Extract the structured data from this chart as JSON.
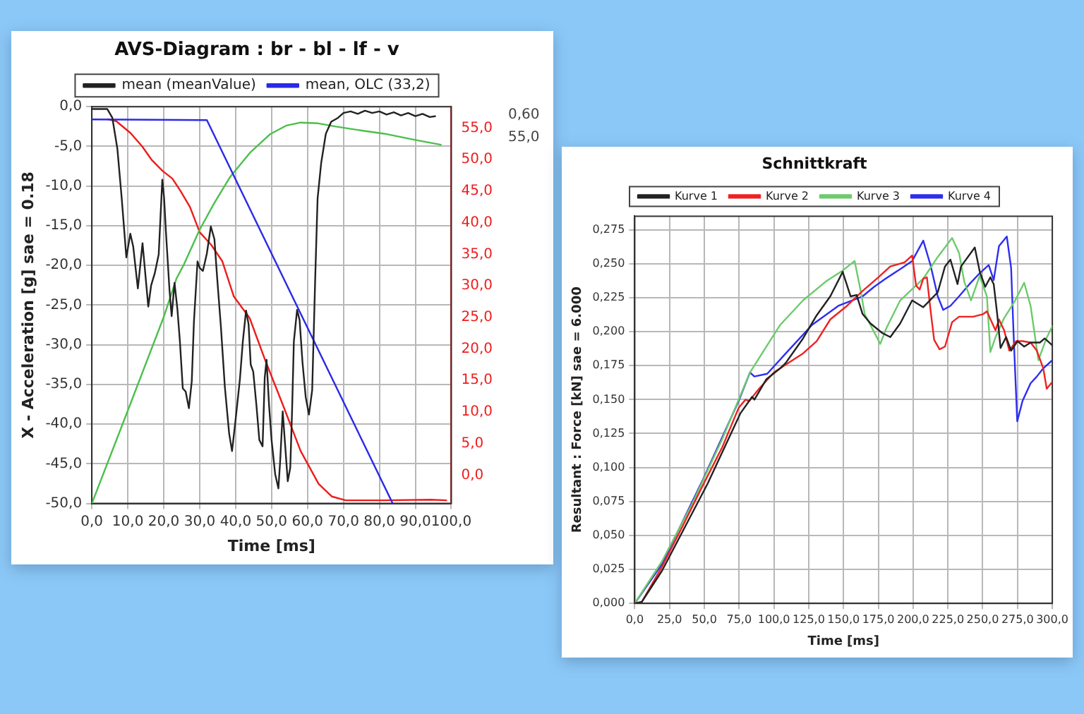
{
  "chart_data": [
    {
      "type": "line",
      "title": "AVS-Diagram : br - bl - lf - v",
      "xlabel": "Time [ms]",
      "ylabel": "X - Acceleration [g] sae = 0.18",
      "legend": "top",
      "grid": true,
      "marker": "none",
      "xlim": [
        0,
        100
      ],
      "xticks": [
        {
          "value": 0,
          "label": "0,0"
        },
        {
          "value": 10,
          "label": "10,0"
        },
        {
          "value": 20,
          "label": "20,0"
        },
        {
          "value": 30,
          "label": "30,0"
        },
        {
          "value": 40,
          "label": "40,0"
        },
        {
          "value": 50,
          "label": "50,0"
        },
        {
          "value": 60,
          "label": "60,0"
        },
        {
          "value": 70,
          "label": "70,0"
        },
        {
          "value": 80,
          "label": "80,0"
        },
        {
          "value": 90,
          "label": "90,0"
        },
        {
          "value": 100,
          "label": "100,0"
        }
      ],
      "ylim": [
        -50,
        0
      ],
      "yticks": [
        {
          "value": -50,
          "label": "-50,0"
        },
        {
          "value": -45,
          "label": "-45,0"
        },
        {
          "value": -40,
          "label": "-40,0"
        },
        {
          "value": -35,
          "label": "-35,0"
        },
        {
          "value": -30,
          "label": "-30,0"
        },
        {
          "value": -25,
          "label": "-25,0"
        },
        {
          "value": -20,
          "label": "-20,0"
        },
        {
          "value": -15,
          "label": "-15,0"
        },
        {
          "value": -10,
          "label": "-10,0"
        },
        {
          "value": -5,
          "label": "-5,0"
        },
        {
          "value": 0,
          "label": "0,0"
        }
      ],
      "y2lim": [
        -4.5,
        58.4
      ],
      "y2ticks": [
        {
          "value": 0,
          "label": "0,0"
        },
        {
          "value": 5,
          "label": "5,0"
        },
        {
          "value": 10,
          "label": "10,0"
        },
        {
          "value": 15,
          "label": "15,0"
        },
        {
          "value": 20,
          "label": "20,0"
        },
        {
          "value": 25,
          "label": "25,0"
        },
        {
          "value": 30,
          "label": "30,0"
        },
        {
          "value": 35,
          "label": "35,0"
        },
        {
          "value": 40,
          "label": "40,0"
        },
        {
          "value": 45,
          "label": "45,0"
        },
        {
          "value": 50,
          "label": "50,0"
        },
        {
          "value": 55,
          "label": "55,0"
        }
      ],
      "annotations": [
        "0,60",
        "55,0"
      ],
      "series": [
        {
          "name": "mean (meanValue)",
          "color": "#222222",
          "x": [
            0,
            4.3,
            5.7,
            7.1,
            8.3,
            9.6,
            10.7,
            11.5,
            12.8,
            14.1,
            15.7,
            16.5,
            17.5,
            18.6,
            19.6,
            20.1,
            20.6,
            21.6,
            22.2,
            23,
            23.8,
            24.5,
            25.3,
            26.1,
            27,
            27.8,
            28.4,
            29.4,
            30,
            30.9,
            32,
            33.1,
            34.1,
            34.9,
            35.9,
            37,
            38.2,
            39,
            40,
            41.2,
            42,
            42.9,
            43.6,
            44.2,
            44.9,
            45.8,
            46.6,
            47.5,
            48.1,
            48.6,
            49.3,
            50,
            51,
            51.9,
            52.4,
            53.1,
            53.8,
            54.5,
            55.2,
            55.7,
            56.2,
            57.1,
            57.8,
            58.6,
            59.5,
            60.4,
            61.3,
            62.1,
            62.8,
            63.8,
            65.1,
            66.6,
            68.5,
            70,
            72,
            74,
            76,
            78,
            80,
            82,
            84,
            86,
            88,
            90,
            92,
            94,
            95.5
          ],
          "values": [
            -0.3,
            -0.3,
            -1.4,
            -5.3,
            -11.5,
            -19,
            -16,
            -17.6,
            -22.9,
            -17.2,
            -25.2,
            -22.5,
            -21,
            -18.6,
            -9.2,
            -11.5,
            -15.7,
            -23.1,
            -26.4,
            -22.2,
            -25.5,
            -29.6,
            -35.5,
            -35.9,
            -38,
            -34.6,
            -27.1,
            -19.5,
            -20.3,
            -20.7,
            -18.5,
            -15.1,
            -16.7,
            -21.8,
            -27.7,
            -35.3,
            -41.2,
            -43.4,
            -39.4,
            -34.3,
            -29.6,
            -25.7,
            -27.4,
            -32.5,
            -33.4,
            -37.7,
            -42,
            -42.8,
            -34.1,
            -31.9,
            -37.6,
            -42,
            -46.3,
            -48.1,
            -44.6,
            -38.4,
            -42.8,
            -47.2,
            -45.5,
            -38.4,
            -29.6,
            -25.6,
            -26.9,
            -32.2,
            -36.6,
            -38.8,
            -35.7,
            -22.3,
            -11.6,
            -7.1,
            -3.4,
            -1.9,
            -1.4,
            -0.8,
            -0.6,
            -0.9,
            -0.5,
            -0.8,
            -0.6,
            -1,
            -0.7,
            -1.1,
            -0.8,
            -1.2,
            -0.9,
            -1.3,
            -1.2
          ]
        },
        {
          "name": "mean, OLC (33,2)",
          "color": "#2a2ae8",
          "x": [
            0,
            32,
            83.7
          ],
          "values": [
            -1.6,
            -1.7,
            -50
          ]
        },
        {
          "color": "#4cbf4c",
          "x": [
            0,
            10,
            20,
            23.5,
            25.6,
            30,
            34,
            38.4,
            44,
            49.5,
            54,
            58.1,
            63,
            67.9,
            75,
            81.3,
            90,
            97.1
          ],
          "values": [
            -50,
            -38.3,
            -26.5,
            -21.7,
            -19.9,
            -15.5,
            -12.2,
            -8.9,
            -5.8,
            -3.5,
            -2.4,
            -2,
            -2.1,
            -2.5,
            -3,
            -3.4,
            -4.2,
            -4.8
          ]
        },
        {
          "color": "#ee1c1c",
          "axis": "y2",
          "x": [
            4.5,
            6.8,
            10.8,
            14,
            16.6,
            19.7,
            22.4,
            24.6,
            27.3,
            30,
            33.2,
            36.3,
            39.5,
            43.9,
            48.3,
            53.1,
            58.1,
            63.1,
            66.8,
            70.6,
            81.3,
            94.3,
            98.6
          ],
          "values": [
            56.4,
            56.1,
            54.2,
            52.1,
            50,
            48.2,
            47,
            45.1,
            42.5,
            38.5,
            36.5,
            33.9,
            28.3,
            24.9,
            18.1,
            11.2,
            3.8,
            -1.4,
            -3.4,
            -4,
            -4,
            -3.9,
            -4
          ]
        }
      ]
    },
    {
      "type": "line",
      "title": "Schnittkraft",
      "xlabel": "Time [ms]",
      "ylabel": "Resultant : Force [kN] sae = 6.000",
      "legend": "top",
      "grid": true,
      "marker": "none",
      "xlim": [
        0,
        300
      ],
      "xticks": [
        {
          "value": 0,
          "label": "0,0"
        },
        {
          "value": 25,
          "label": "25,0"
        },
        {
          "value": 50,
          "label": "50,0"
        },
        {
          "value": 75,
          "label": "75,0"
        },
        {
          "value": 100,
          "label": "100,0"
        },
        {
          "value": 125,
          "label": "125,0"
        },
        {
          "value": 150,
          "label": "150,0"
        },
        {
          "value": 175,
          "label": "175,0"
        },
        {
          "value": 200,
          "label": "200,0"
        },
        {
          "value": 225,
          "label": "225,0"
        },
        {
          "value": 250,
          "label": "250,0"
        },
        {
          "value": 275,
          "label": "275,0"
        },
        {
          "value": 300,
          "label": "300,0"
        }
      ],
      "ylim": [
        0,
        0.285
      ],
      "yticks": [
        {
          "value": 0,
          "label": "0,000"
        },
        {
          "value": 0.025,
          "label": "0,025"
        },
        {
          "value": 0.05,
          "label": "0,050"
        },
        {
          "value": 0.075,
          "label": "0,075"
        },
        {
          "value": 0.1,
          "label": "0,100"
        },
        {
          "value": 0.125,
          "label": "0,125"
        },
        {
          "value": 0.15,
          "label": "0,150"
        },
        {
          "value": 0.175,
          "label": "0,175"
        },
        {
          "value": 0.2,
          "label": "0,200"
        },
        {
          "value": 0.225,
          "label": "0,225"
        },
        {
          "value": 0.25,
          "label": "0,250"
        },
        {
          "value": 0.275,
          "label": "0,275"
        }
      ],
      "series": [
        {
          "name": "Kurve 1",
          "color": "#222222",
          "x": [
            0,
            5,
            19.6,
            52.3,
            76,
            84.3,
            86,
            94.6,
            104.5,
            108.5,
            120.9,
            130.7,
            140.5,
            149.4,
            155.1,
            159.4,
            163.7,
            169.4,
            177.8,
            183.6,
            190.7,
            199.3,
            207.3,
            217.7,
            222.9,
            226.8,
            231.9,
            234.4,
            244.3,
            247.9,
            251.8,
            255.5,
            257.9,
            260.4,
            262.8,
            266.8,
            270.4,
            275,
            279.8,
            284.4,
            291.1,
            294.5,
            300
          ],
          "values": [
            0,
            0.001,
            0.024,
            0.088,
            0.14,
            0.152,
            0.15,
            0.165,
            0.173,
            0.177,
            0.195,
            0.212,
            0.226,
            0.244,
            0.226,
            0.227,
            0.213,
            0.206,
            0.199,
            0.196,
            0.206,
            0.223,
            0.218,
            0.229,
            0.248,
            0.253,
            0.235,
            0.248,
            0.262,
            0.244,
            0.233,
            0.24,
            0.235,
            0.213,
            0.188,
            0.196,
            0.186,
            0.193,
            0.189,
            0.192,
            0.192,
            0.195,
            0.19
          ]
        },
        {
          "name": "Kurve 2",
          "color": "#ee2222",
          "x": [
            0,
            5,
            19.6,
            34,
            48.5,
            62.9,
            74.7,
            79.6,
            82.3,
            89.3,
            100,
            120.9,
            130.7,
            140.5,
            152.5,
            163.7,
            175,
            183.6,
            193.8,
            199.3,
            202.1,
            204.7,
            207.3,
            209.9,
            212.5,
            215.1,
            219,
            222.9,
            228,
            233,
            243.2,
            250.5,
            253,
            259.2,
            261.7,
            265.4,
            269.1,
            274,
            278.6,
            284.4,
            288.9,
            293.5,
            296,
            300
          ],
          "values": [
            0,
            0.001,
            0.027,
            0.056,
            0.086,
            0.115,
            0.144,
            0.15,
            0.149,
            0.158,
            0.17,
            0.184,
            0.193,
            0.209,
            0.219,
            0.23,
            0.24,
            0.248,
            0.251,
            0.256,
            0.234,
            0.231,
            0.239,
            0.24,
            0.216,
            0.194,
            0.187,
            0.189,
            0.207,
            0.211,
            0.211,
            0.213,
            0.215,
            0.201,
            0.209,
            0.201,
            0.186,
            0.193,
            0.193,
            0.192,
            0.186,
            0.173,
            0.158,
            0.163
          ]
        },
        {
          "name": "Kurve 3",
          "color": "#6ccb6c",
          "x": [
            0,
            19.6,
            41.6,
            62.9,
            82.8,
            104.5,
            120.9,
            137.4,
            149.4,
            158,
            162.3,
            165.2,
            176.4,
            181,
            190.7,
            207.3,
            217.7,
            228,
            233,
            236.7,
            241.6,
            247.8,
            253,
            255.5,
            259.2,
            265.4,
            272.8,
            279.8,
            284.4,
            290,
            295.7,
            300
          ],
          "values": [
            0,
            0.031,
            0.074,
            0.121,
            0.17,
            0.205,
            0.223,
            0.237,
            0.245,
            0.252,
            0.23,
            0.213,
            0.191,
            0.203,
            0.223,
            0.239,
            0.255,
            0.269,
            0.258,
            0.237,
            0.223,
            0.241,
            0.226,
            0.185,
            0.196,
            0.21,
            0.222,
            0.236,
            0.219,
            0.179,
            0.195,
            0.204
          ]
        },
        {
          "name": "Kurve 4",
          "color": "#2e2ef0",
          "x": [
            0,
            19.6,
            48.5,
            74.7,
            82.8,
            85.9,
            95.2,
            108.5,
            127.4,
            146.3,
            163.7,
            172,
            180.2,
            190.7,
            199.3,
            207.3,
            212.5,
            217.7,
            221.6,
            226.8,
            233,
            240.5,
            247.8,
            254.3,
            257.9,
            261.7,
            267.3,
            270.4,
            272.3,
            274.8,
            278.6,
            284.4,
            288.9,
            293.5,
            300
          ],
          "values": [
            0,
            0.029,
            0.09,
            0.149,
            0.17,
            0.167,
            0.169,
            0.184,
            0.205,
            0.219,
            0.226,
            0.233,
            0.239,
            0.246,
            0.252,
            0.267,
            0.249,
            0.226,
            0.216,
            0.219,
            0.226,
            0.235,
            0.243,
            0.249,
            0.238,
            0.263,
            0.27,
            0.247,
            0.195,
            0.134,
            0.149,
            0.162,
            0.167,
            0.173,
            0.179
          ]
        }
      ]
    }
  ]
}
